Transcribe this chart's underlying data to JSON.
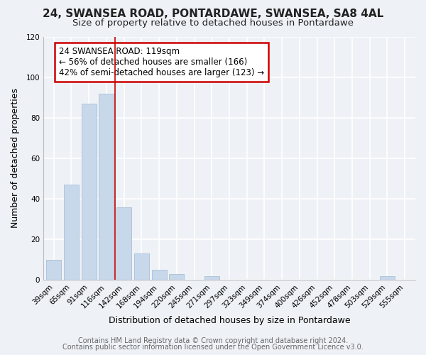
{
  "title": "24, SWANSEA ROAD, PONTARDAWE, SWANSEA, SA8 4AL",
  "subtitle": "Size of property relative to detached houses in Pontardawe",
  "xlabel": "Distribution of detached houses by size in Pontardawe",
  "ylabel": "Number of detached properties",
  "bar_labels": [
    "39sqm",
    "65sqm",
    "91sqm",
    "116sqm",
    "142sqm",
    "168sqm",
    "194sqm",
    "220sqm",
    "245sqm",
    "271sqm",
    "297sqm",
    "323sqm",
    "349sqm",
    "374sqm",
    "400sqm",
    "426sqm",
    "452sqm",
    "478sqm",
    "503sqm",
    "529sqm",
    "555sqm"
  ],
  "bar_values": [
    10,
    47,
    87,
    92,
    36,
    13,
    5,
    3,
    0,
    2,
    0,
    0,
    0,
    0,
    0,
    0,
    0,
    0,
    0,
    2,
    0
  ],
  "bar_color": "#c8d8eb",
  "bar_edge_color": "#a8c0d6",
  "annotation_box_text": "24 SWANSEA ROAD: 119sqm\n← 56% of detached houses are smaller (166)\n42% of semi-detached houses are larger (123) →",
  "annotation_box_color": "white",
  "annotation_box_edge_color": "#cc0000",
  "vline_x": 3.5,
  "vline_color": "#cc0000",
  "ylim": [
    0,
    120
  ],
  "yticks": [
    0,
    20,
    40,
    60,
    80,
    100,
    120
  ],
  "footer_line1": "Contains HM Land Registry data © Crown copyright and database right 2024.",
  "footer_line2": "Contains public sector information licensed under the Open Government Licence v3.0.",
  "background_color": "#eef2f7",
  "title_fontsize": 11,
  "subtitle_fontsize": 9.5,
  "axis_label_fontsize": 9,
  "tick_fontsize": 7.5,
  "annotation_fontsize": 8.5,
  "footer_fontsize": 7
}
